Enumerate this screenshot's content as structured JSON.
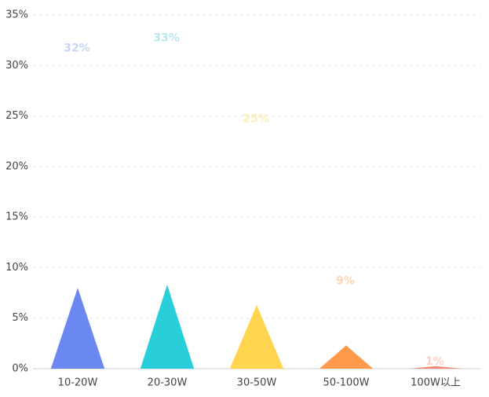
{
  "chart_data": {
    "type": "triangle-bar",
    "categories": [
      "10-20W",
      "20-30W",
      "30-50W",
      "50-100W",
      "100W以上"
    ],
    "series": [
      {
        "values": [
          8,
          8.3,
          6.3,
          2.3,
          0.25
        ],
        "colors": [
          "#6b87f0",
          "#29cfd8",
          "#ffd54f",
          "#ff9a4d",
          "#f08a7a"
        ]
      },
      {
        "values": [
          32,
          33,
          25,
          9,
          1
        ],
        "value_labels": [
          "32%",
          "33%",
          "25%",
          "9%",
          "1%"
        ],
        "colors": [
          "#c8d6f5",
          "#b8e9ef",
          "#ffeeb8",
          "#ffd7b8",
          "#fbd2c8"
        ]
      }
    ],
    "ylim": [
      0,
      35
    ],
    "yticks": [
      {
        "value": 0,
        "label": "0%"
      },
      {
        "value": 5,
        "label": "5%"
      },
      {
        "value": 10,
        "label": "10%"
      },
      {
        "value": 15,
        "label": "15%"
      },
      {
        "value": 20,
        "label": "20%"
      },
      {
        "value": 25,
        "label": "25%"
      },
      {
        "value": 30,
        "label": "30%"
      },
      {
        "value": 35,
        "label": "35%"
      }
    ],
    "grid": true
  }
}
